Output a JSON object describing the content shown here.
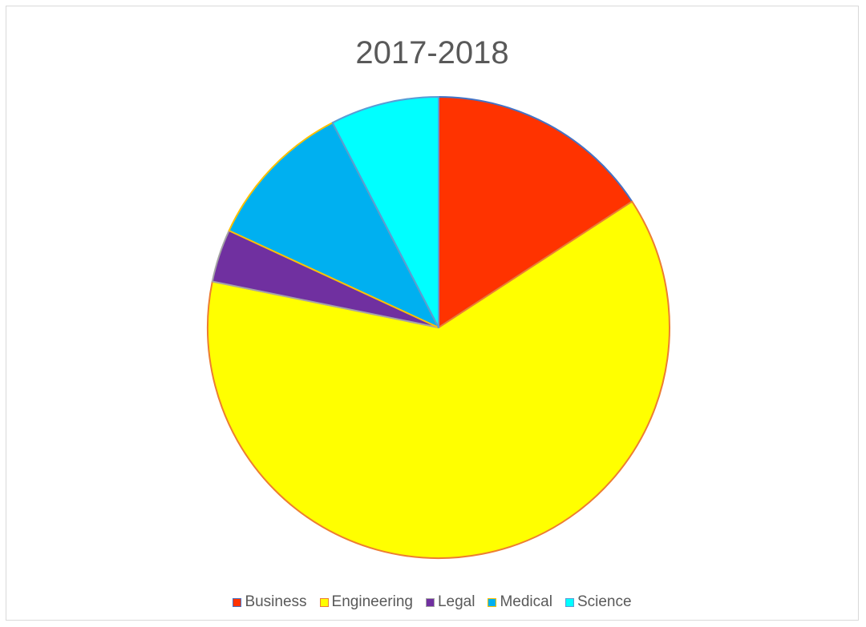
{
  "chart_data": {
    "type": "pie",
    "title": "2017-2018",
    "legend_position": "bottom",
    "categories": [
      "Business",
      "Engineering",
      "Legal",
      "Medical",
      "Science"
    ],
    "values": [
      15.8,
      62.4,
      3.7,
      10.5,
      7.6
    ],
    "colors": [
      "#ff3300",
      "#ffff00",
      "#7030a0",
      "#00b0f0",
      "#00ffff"
    ],
    "edge_colors": [
      "#4472c4",
      "#ed7d31",
      "#a5a5a5",
      "#ffc000",
      "#5b9bd5"
    ]
  }
}
